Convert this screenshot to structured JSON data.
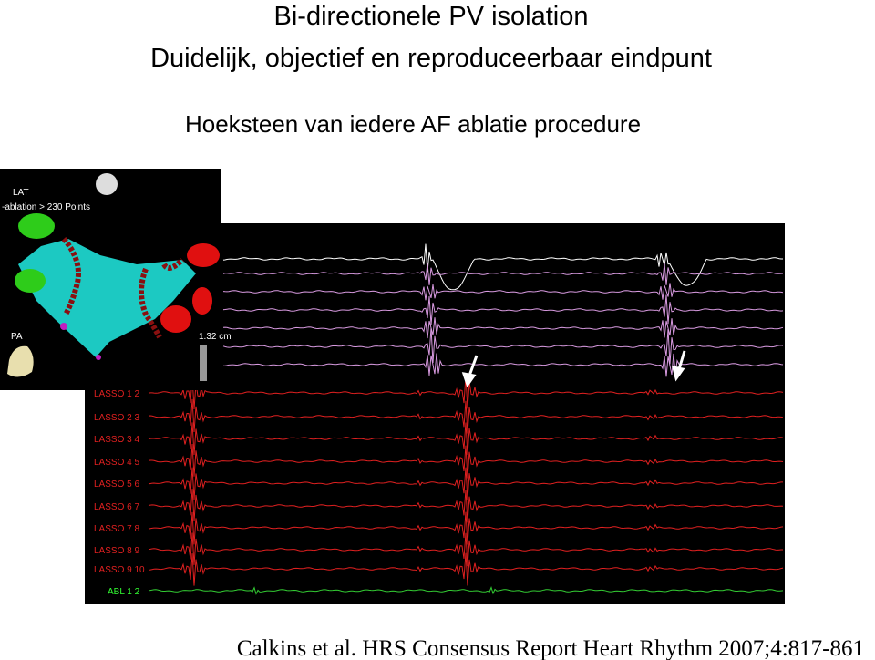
{
  "slide": {
    "title_lines": [
      "Bi-directionele PV isolation",
      "Duidelijk, objectief en reproduceerbaar eindpunt"
    ],
    "subtitle": "Hoeksteen van iedere AF ablatie procedure",
    "citation": "Calkins et al. HRS Consensus Report  Heart Rhythm 2007;4:817-861"
  },
  "map": {
    "labels": [
      "LAT",
      "-ablation > 230 Points",
      "PA"
    ],
    "scale": "1.32 cm"
  },
  "ecg": {
    "channels": [
      "LASSO 1 2",
      "LASSO 2 3",
      "LASSO 3 4",
      "LASSO 4 5",
      "LASSO 5 6",
      "LASSO 6 7",
      "LASSO 7 8",
      "LASSO 8 9",
      "LASSO 9 10",
      "ABL 1 2"
    ]
  }
}
